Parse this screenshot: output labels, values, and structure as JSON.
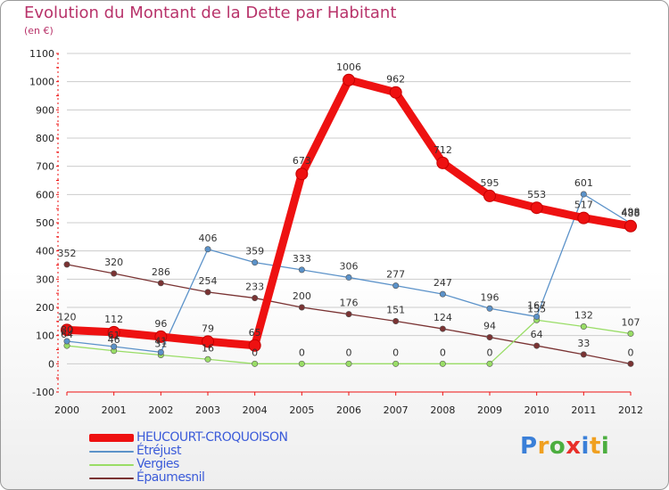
{
  "header": {
    "title": "Evolution du Montant de la Dette par Habitant",
    "unit": "(en €)"
  },
  "logo": {
    "text": "Proxiti"
  },
  "colors": {
    "heucourt": "#ee1111",
    "etrejust": "#5b92c9",
    "vergies": "#99dd66",
    "epaumesnil": "#7a3333",
    "grid": "#cccccc",
    "axis": "#ee1111"
  },
  "chart_data": {
    "type": "line",
    "title": "Evolution du Montant de la Dette par Habitant",
    "ylabel": "(en €)",
    "xlabel": "",
    "ylim": [
      -100,
      1100
    ],
    "yticks": [
      -100,
      0,
      100,
      200,
      300,
      400,
      500,
      600,
      700,
      800,
      900,
      1000,
      1100
    ],
    "x": [
      "2000",
      "2001",
      "2002",
      "2003",
      "2004",
      "2005",
      "2006",
      "2007",
      "2008",
      "2009",
      "2010",
      "2011",
      "2012"
    ],
    "legend_position": "bottom-left",
    "series": [
      {
        "key": "epaumesnil",
        "name": "Épaumesnil",
        "values": [
          352,
          320,
          286,
          254,
          233,
          200,
          176,
          151,
          124,
          94,
          64,
          33,
          0
        ]
      },
      {
        "key": "vergies",
        "name": "Vergies",
        "values": [
          64,
          46,
          31,
          16,
          0,
          0,
          0,
          0,
          0,
          0,
          155,
          132,
          107
        ]
      },
      {
        "key": "etrejust",
        "name": "Étréjust",
        "values": [
          80,
          61,
          41,
          406,
          359,
          333,
          306,
          277,
          247,
          196,
          167,
          601,
          498
        ]
      },
      {
        "key": "heucourt",
        "name": "HEUCOURT-CROQUOISON",
        "values": [
          120,
          112,
          96,
          79,
          65,
          673,
          1006,
          962,
          712,
          595,
          553,
          517,
          488
        ]
      }
    ]
  },
  "legend": [
    {
      "key": "heucourt",
      "label": "HEUCOURT-CROQUOISON"
    },
    {
      "key": "etrejust",
      "label": "Étréjust"
    },
    {
      "key": "vergies",
      "label": "Vergies"
    },
    {
      "key": "epaumesnil",
      "label": "Épaumesnil"
    }
  ]
}
